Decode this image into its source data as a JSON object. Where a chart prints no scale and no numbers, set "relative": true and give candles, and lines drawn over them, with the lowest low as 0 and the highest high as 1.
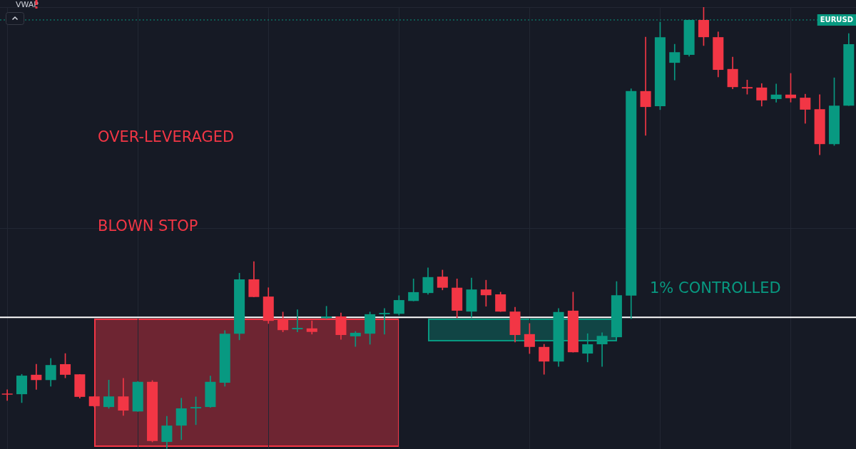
{
  "chart_data": {
    "type": "candlestick",
    "relative": true,
    "grid": true,
    "categories": [
      null,
      null,
      null,
      null,
      null,
      null,
      null,
      null,
      null,
      null,
      null,
      null,
      null,
      null,
      null,
      null,
      null,
      null,
      null,
      null,
      null,
      null,
      null,
      null,
      null,
      null,
      null,
      null,
      null,
      null,
      null,
      null,
      null,
      null,
      null,
      null,
      null,
      null,
      null,
      null,
      null,
      null,
      null,
      null,
      null,
      null,
      null,
      null,
      null,
      null,
      null,
      null,
      null,
      null,
      null,
      null,
      null,
      null,
      null
    ],
    "ohlc": [
      [
        0.124,
        0.134,
        0.11,
        0.123
      ],
      [
        0.124,
        0.169,
        0.105,
        0.166
      ],
      [
        0.168,
        0.192,
        0.135,
        0.156
      ],
      [
        0.156,
        0.205,
        0.142,
        0.19
      ],
      [
        0.192,
        0.216,
        0.161,
        0.168
      ],
      [
        0.169,
        0.169,
        0.115,
        0.118
      ],
      [
        0.119,
        0.119,
        0.095,
        0.097
      ],
      [
        0.095,
        0.156,
        0.092,
        0.119
      ],
      [
        0.119,
        0.16,
        0.076,
        0.087
      ],
      [
        0.085,
        0.153,
        0.085,
        0.152
      ],
      [
        0.152,
        0.155,
        0.016,
        0.018
      ],
      [
        0.016,
        0.074,
        0,
        0.053
      ],
      [
        0.053,
        0.115,
        0.021,
        0.092
      ],
      [
        0.092,
        0.118,
        0.055,
        0.095
      ],
      [
        0.095,
        0.165,
        0.094,
        0.152
      ],
      [
        0.15,
        0.268,
        0.142,
        0.261
      ],
      [
        0.261,
        0.398,
        0.247,
        0.384
      ],
      [
        0.384,
        0.424,
        0.344,
        0.344
      ],
      [
        0.345,
        0.365,
        0.284,
        0.29
      ],
      [
        0.292,
        0.31,
        0.265,
        0.269
      ],
      [
        0.271,
        0.315,
        0.265,
        0.274
      ],
      [
        0.273,
        0.29,
        0.26,
        0.265
      ],
      [
        0.297,
        0.323,
        0.295,
        0.3
      ],
      [
        0.3,
        0.308,
        0.248,
        0.258
      ],
      [
        0.255,
        0.266,
        0.232,
        0.263
      ],
      [
        0.261,
        0.31,
        0.237,
        0.305
      ],
      [
        0.305,
        0.318,
        0.26,
        0.308
      ],
      [
        0.306,
        0.347,
        0.303,
        0.337
      ],
      [
        0.335,
        0.385,
        0.335,
        0.355
      ],
      [
        0.353,
        0.41,
        0.35,
        0.389
      ],
      [
        0.39,
        0.405,
        0.36,
        0.365
      ],
      [
        0.365,
        0.385,
        0.297,
        0.313
      ],
      [
        0.311,
        0.387,
        0.298,
        0.361
      ],
      [
        0.361,
        0.382,
        0.323,
        0.348
      ],
      [
        0.35,
        0.355,
        0.311,
        0.311
      ],
      [
        0.311,
        0.321,
        0.242,
        0.258
      ],
      [
        0.26,
        0.284,
        0.216,
        0.231
      ],
      [
        0.231,
        0.237,
        0.169,
        0.198
      ],
      [
        0.198,
        0.318,
        0.187,
        0.31
      ],
      [
        0.313,
        0.355,
        0.219,
        0.219
      ],
      [
        0.216,
        0.261,
        0.197,
        0.237
      ],
      [
        0.237,
        0.263,
        0.187,
        0.256
      ],
      [
        0.253,
        0.379,
        0.253,
        0.348
      ],
      [
        0.347,
        0.815,
        0.295,
        0.81
      ],
      [
        0.81,
        0.932,
        0.71,
        0.774
      ],
      [
        0.776,
        0.966,
        0.768,
        0.932
      ],
      [
        0.874,
        0.916,
        0.835,
        0.898
      ],
      [
        0.892,
        0.971,
        0.889,
        0.971
      ],
      [
        0.971,
        1,
        0.913,
        0.932
      ],
      [
        0.932,
        0.944,
        0.842,
        0.858
      ],
      [
        0.86,
        0.887,
        0.815,
        0.819
      ],
      [
        0.819,
        0.835,
        0.803,
        0.816
      ],
      [
        0.818,
        0.827,
        0.776,
        0.789
      ],
      [
        0.792,
        0.826,
        0.785,
        0.802
      ],
      [
        0.802,
        0.85,
        0.785,
        0.794
      ],
      [
        0.795,
        0.803,
        0.737,
        0.768
      ],
      [
        0.769,
        0.802,
        0.666,
        0.69
      ],
      [
        0.69,
        0.84,
        0.687,
        0.777
      ],
      [
        0.777,
        0.94,
        0.777,
        0.916
      ]
    ],
    "colors": [
      "#f23645",
      "#089981",
      "#f23645",
      "#089981",
      "#f23645",
      "#f23645",
      "#f23645",
      "#089981",
      "#f23645",
      "#089981",
      "#f23645",
      "#089981",
      "#089981",
      "#089981",
      "#089981",
      "#089981",
      "#089981",
      "#f23645",
      "#f23645",
      "#f23645",
      "#089981",
      "#f23645",
      "#089981",
      "#f23645",
      "#089981",
      "#089981",
      "#089981",
      "#089981",
      "#089981",
      "#089981",
      "#f23645",
      "#f23645",
      "#089981",
      "#f23645",
      "#f23645",
      "#f23645",
      "#f23645",
      "#f23645",
      "#089981",
      "#f23645",
      "#089981",
      "#089981",
      "#089981",
      "#089981",
      "#f23645",
      "#089981",
      "#089981",
      "#089981",
      "#f23645",
      "#f23645",
      "#f23645",
      "#f23645",
      "#f23645",
      "#089981",
      "#f23645",
      "#f23645",
      "#f23645",
      "#089981",
      "#089981"
    ],
    "ref_lines": [
      {
        "axis": "y",
        "value": 0.298,
        "color": "#ffffff",
        "line_style": "solid"
      },
      {
        "axis": "y",
        "value": 0.971,
        "label": "EURUSD",
        "color": "#089981",
        "line_style": "dotted"
      }
    ],
    "annotations": [
      "VWAP",
      "OVER-LEVERAGED",
      "BLOWN STOP",
      "1% CONTROLLED"
    ]
  }
}
